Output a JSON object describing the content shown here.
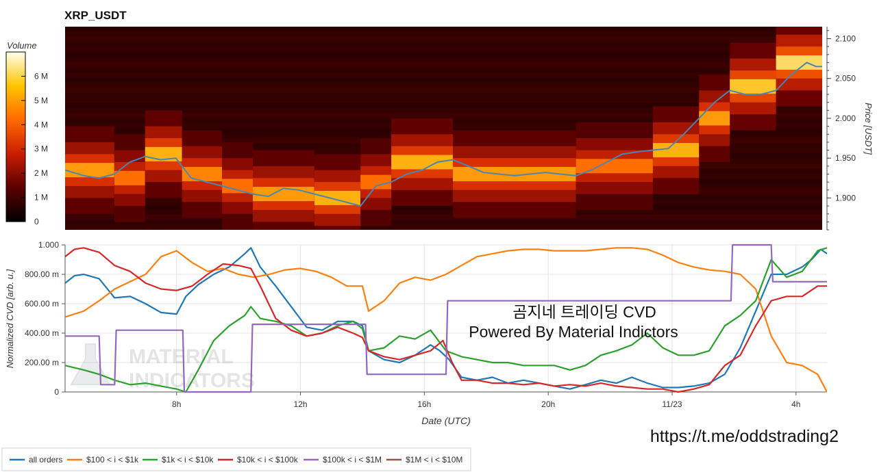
{
  "title": "XRP_USDT",
  "overlay": {
    "line1": "곰지네 트레이딩 CVD",
    "line2": "Powered By Material Indictors",
    "watermark_line1": "MATERIAL",
    "watermark_line2": "INDICATORS",
    "link": "https://t.me/oddstrading2"
  },
  "colors": {
    "all_orders": "#1f77b4",
    "r100_1k": "#ff7f0e",
    "r1k_10k": "#2ca02c",
    "r10k_100k": "#d62728",
    "r100k_1m": "#9467bd",
    "r1m_10m": "#8c564b",
    "price_line": "#4a86b0"
  },
  "chart_data": [
    {
      "type": "heatmap",
      "title": "XRP_USDT",
      "colorbar_label": "Volume",
      "colorbar_ticks": [
        "0",
        "1 M",
        "2 M",
        "3 M",
        "4 M",
        "5 M",
        "6 M"
      ],
      "colorbar_range": [
        0,
        7000000
      ],
      "ylabel": "Price [USDT]",
      "yticks": [
        "1.900",
        "1.950",
        "2.000",
        "2.050",
        "2.100"
      ],
      "ylim": [
        1.86,
        2.115
      ],
      "xlim": [
        4.4,
        29.0
      ],
      "price_series": {
        "x": [
          4.4,
          5.0,
          5.5,
          6.0,
          6.5,
          7.0,
          7.5,
          8.0,
          8.5,
          9.0,
          9.5,
          10.0,
          10.5,
          11.0,
          11.5,
          12.0,
          12.5,
          13.0,
          13.5,
          14.0,
          14.5,
          15.0,
          15.5,
          16.0,
          16.5,
          17.0,
          17.5,
          18.0,
          18.5,
          19.0,
          19.5,
          20.0,
          20.5,
          21.0,
          21.5,
          22.0,
          22.5,
          23.0,
          23.5,
          24.0,
          24.5,
          25.0,
          25.5,
          26.0,
          26.5,
          27.0,
          27.5,
          28.0,
          28.5,
          28.8,
          29.0
        ],
        "y": [
          1.935,
          1.928,
          1.925,
          1.93,
          1.945,
          1.952,
          1.948,
          1.95,
          1.925,
          1.92,
          1.915,
          1.91,
          1.905,
          1.902,
          1.912,
          1.91,
          1.905,
          1.9,
          1.895,
          1.89,
          1.915,
          1.92,
          1.93,
          1.935,
          1.945,
          1.948,
          1.94,
          1.932,
          1.93,
          1.928,
          1.93,
          1.932,
          1.93,
          1.928,
          1.935,
          1.945,
          1.955,
          1.958,
          1.96,
          1.962,
          1.98,
          2.0,
          2.02,
          2.035,
          2.03,
          2.03,
          2.035,
          2.055,
          2.07,
          2.065,
          2.065
        ]
      },
      "bands": [
        {
          "x0": 4.4,
          "x1": 6.0,
          "y": 1.935,
          "intensity": 0.8
        },
        {
          "x0": 6.0,
          "x1": 7.0,
          "y": 1.925,
          "intensity": 0.7
        },
        {
          "x0": 7.0,
          "x1": 8.2,
          "y": 1.955,
          "intensity": 0.85
        },
        {
          "x0": 8.2,
          "x1": 9.5,
          "y": 1.93,
          "intensity": 0.75
        },
        {
          "x0": 9.5,
          "x1": 10.5,
          "y": 1.915,
          "intensity": 0.7
        },
        {
          "x0": 10.5,
          "x1": 12.5,
          "y": 1.905,
          "intensity": 0.8
        },
        {
          "x0": 12.5,
          "x1": 14.0,
          "y": 1.9,
          "intensity": 0.85
        },
        {
          "x0": 14.0,
          "x1": 15.0,
          "y": 1.92,
          "intensity": 0.7
        },
        {
          "x0": 15.0,
          "x1": 17.0,
          "y": 1.945,
          "intensity": 0.85
        },
        {
          "x0": 17.0,
          "x1": 21.0,
          "y": 1.93,
          "intensity": 0.8
        },
        {
          "x0": 21.0,
          "x1": 23.5,
          "y": 1.94,
          "intensity": 0.7
        },
        {
          "x0": 23.5,
          "x1": 25.0,
          "y": 1.96,
          "intensity": 0.85
        },
        {
          "x0": 25.0,
          "x1": 26.0,
          "y": 2.0,
          "intensity": 0.8
        },
        {
          "x0": 26.0,
          "x1": 27.5,
          "y": 2.04,
          "intensity": 0.9
        },
        {
          "x0": 27.5,
          "x1": 29.0,
          "y": 2.07,
          "intensity": 0.95
        }
      ]
    },
    {
      "type": "line",
      "xlabel": "Date (UTC)",
      "ylabel": "Normalized CVD [arb. u.]",
      "xlim": [
        4.4,
        29.0
      ],
      "ylim": [
        0,
        1.0
      ],
      "xticks": [
        {
          "x": 8,
          "label": "8h"
        },
        {
          "x": 12,
          "label": "12h"
        },
        {
          "x": 16,
          "label": "16h"
        },
        {
          "x": 20,
          "label": "20h"
        },
        {
          "x": 24,
          "label": "11/23"
        },
        {
          "x": 28,
          "label": "4h"
        }
      ],
      "yticks": [
        {
          "v": 0,
          "label": "0"
        },
        {
          "v": 0.2,
          "label": "200.00 m"
        },
        {
          "v": 0.4,
          "label": "400.00 m"
        },
        {
          "v": 0.6,
          "label": "600.00 m"
        },
        {
          "v": 0.8,
          "label": "800.00 m"
        },
        {
          "v": 1.0,
          "label": "1.000"
        }
      ],
      "grid": true,
      "legend_position": "bottom-left",
      "series": [
        {
          "name": "all orders",
          "color_key": "all_orders",
          "x": [
            4.4,
            4.7,
            5.0,
            5.5,
            6.0,
            6.5,
            7.0,
            7.5,
            8.0,
            8.3,
            8.7,
            9.2,
            9.7,
            10.2,
            10.4,
            10.7,
            11.2,
            11.7,
            12.2,
            12.7,
            13.2,
            13.7,
            14.0,
            14.2,
            14.7,
            15.2,
            15.7,
            16.2,
            16.5,
            16.8,
            17.2,
            17.7,
            18.2,
            18.7,
            19.2,
            19.7,
            20.2,
            20.7,
            21.2,
            21.7,
            22.2,
            22.7,
            23.2,
            23.7,
            24.2,
            24.7,
            25.2,
            25.7,
            26.2,
            26.7,
            27.2,
            27.7,
            28.2,
            28.5,
            28.8,
            29.0
          ],
          "y": [
            0.74,
            0.79,
            0.8,
            0.77,
            0.64,
            0.65,
            0.6,
            0.54,
            0.53,
            0.65,
            0.73,
            0.8,
            0.85,
            0.94,
            0.98,
            0.85,
            0.72,
            0.58,
            0.44,
            0.42,
            0.48,
            0.48,
            0.45,
            0.28,
            0.22,
            0.2,
            0.25,
            0.32,
            0.28,
            0.22,
            0.1,
            0.08,
            0.1,
            0.06,
            0.08,
            0.06,
            0.04,
            0.02,
            0.05,
            0.08,
            0.06,
            0.1,
            0.06,
            0.03,
            0.03,
            0.04,
            0.06,
            0.12,
            0.3,
            0.55,
            0.8,
            0.8,
            0.85,
            0.9,
            0.97,
            0.94
          ]
        },
        {
          "name": "$100 < i < $1k",
          "color_key": "r100_1k",
          "x": [
            4.4,
            5.0,
            5.5,
            6.0,
            6.5,
            7.0,
            7.5,
            8.0,
            8.5,
            9.0,
            9.5,
            10.0,
            10.5,
            11.0,
            11.5,
            12.0,
            12.5,
            13.0,
            13.5,
            14.0,
            14.2,
            14.7,
            15.2,
            15.7,
            16.2,
            16.7,
            17.2,
            17.7,
            18.2,
            18.7,
            19.2,
            19.7,
            20.2,
            20.7,
            21.2,
            21.7,
            22.2,
            22.7,
            23.2,
            23.7,
            24.2,
            24.7,
            25.2,
            25.7,
            26.2,
            26.7,
            27.2,
            27.7,
            28.2,
            28.7,
            29.0
          ],
          "y": [
            0.51,
            0.55,
            0.62,
            0.7,
            0.75,
            0.8,
            0.92,
            0.96,
            0.88,
            0.82,
            0.84,
            0.8,
            0.78,
            0.8,
            0.83,
            0.84,
            0.82,
            0.78,
            0.72,
            0.72,
            0.55,
            0.62,
            0.74,
            0.78,
            0.76,
            0.8,
            0.86,
            0.92,
            0.94,
            0.96,
            0.97,
            0.97,
            0.96,
            0.96,
            0.96,
            0.97,
            0.98,
            0.98,
            0.97,
            0.93,
            0.88,
            0.85,
            0.83,
            0.82,
            0.8,
            0.7,
            0.38,
            0.2,
            0.18,
            0.12,
            0.0
          ]
        },
        {
          "name": "$1k < i < $10k",
          "color_key": "r1k_10k",
          "x": [
            4.4,
            5.0,
            5.5,
            6.0,
            6.5,
            7.0,
            7.5,
            8.0,
            8.3,
            8.7,
            9.2,
            9.7,
            10.2,
            10.4,
            10.7,
            11.2,
            11.7,
            12.2,
            12.7,
            13.2,
            13.7,
            14.0,
            14.2,
            14.7,
            15.2,
            15.7,
            16.2,
            16.7,
            17.2,
            17.7,
            18.2,
            18.7,
            19.2,
            19.7,
            20.2,
            20.7,
            21.2,
            21.7,
            22.2,
            22.7,
            23.2,
            23.7,
            24.2,
            24.7,
            25.2,
            25.7,
            26.2,
            26.7,
            27.2,
            27.7,
            28.2,
            28.7,
            29.0
          ],
          "y": [
            0.18,
            0.15,
            0.12,
            0.08,
            0.05,
            0.06,
            0.04,
            0.02,
            0.0,
            0.15,
            0.35,
            0.45,
            0.52,
            0.58,
            0.5,
            0.48,
            0.45,
            0.38,
            0.4,
            0.45,
            0.48,
            0.43,
            0.28,
            0.3,
            0.38,
            0.36,
            0.42,
            0.28,
            0.24,
            0.22,
            0.2,
            0.2,
            0.18,
            0.18,
            0.18,
            0.15,
            0.18,
            0.25,
            0.28,
            0.32,
            0.4,
            0.3,
            0.25,
            0.25,
            0.28,
            0.45,
            0.52,
            0.62,
            0.9,
            0.78,
            0.82,
            0.96,
            0.98
          ]
        },
        {
          "name": "$10k < i < $100k",
          "color_key": "r10k_100k",
          "x": [
            4.4,
            4.7,
            5.0,
            5.5,
            6.0,
            6.5,
            7.0,
            7.5,
            8.0,
            8.5,
            9.0,
            9.5,
            10.0,
            10.4,
            10.7,
            11.2,
            11.7,
            12.2,
            12.7,
            13.2,
            13.7,
            14.0,
            14.2,
            14.7,
            15.2,
            15.7,
            16.2,
            16.6,
            16.9,
            17.2,
            17.7,
            18.2,
            18.7,
            19.2,
            19.7,
            20.2,
            20.7,
            21.2,
            21.7,
            22.2,
            22.7,
            23.2,
            23.7,
            24.2,
            24.7,
            25.2,
            25.7,
            26.2,
            26.7,
            27.2,
            27.7,
            28.2,
            28.7,
            29.0
          ],
          "y": [
            0.92,
            0.97,
            0.98,
            0.95,
            0.86,
            0.82,
            0.74,
            0.7,
            0.69,
            0.72,
            0.8,
            0.87,
            0.86,
            0.84,
            0.72,
            0.5,
            0.42,
            0.38,
            0.4,
            0.44,
            0.4,
            0.37,
            0.28,
            0.24,
            0.22,
            0.25,
            0.28,
            0.35,
            0.2,
            0.08,
            0.08,
            0.06,
            0.06,
            0.05,
            0.06,
            0.04,
            0.05,
            0.04,
            0.06,
            0.04,
            0.03,
            0.02,
            0.02,
            0.0,
            0.02,
            0.05,
            0.18,
            0.25,
            0.45,
            0.62,
            0.65,
            0.65,
            0.72,
            0.72
          ]
        },
        {
          "name": "$100k < i < $1M",
          "color_key": "r100k_1m",
          "x": [
            4.4,
            5.5,
            5.55,
            6.0,
            6.05,
            8.2,
            8.25,
            10.4,
            10.45,
            14.1,
            14.15,
            16.7,
            16.75,
            25.9,
            25.95,
            27.2,
            27.25,
            29.0
          ],
          "y": [
            0.38,
            0.38,
            0.05,
            0.05,
            0.42,
            0.42,
            0.0,
            0.0,
            0.46,
            0.46,
            0.12,
            0.12,
            0.62,
            0.62,
            1.0,
            1.0,
            0.75,
            0.75
          ]
        },
        {
          "name": "$1M < i < $10M",
          "color_key": "r1m_10m",
          "x": [],
          "y": []
        }
      ]
    }
  ]
}
